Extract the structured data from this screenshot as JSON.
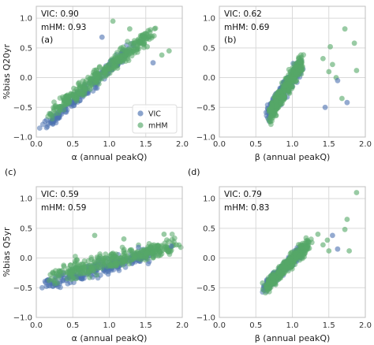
{
  "colors": {
    "vic": "#4c72b0",
    "mhm": "#55a868",
    "grid": "#d9d9d9",
    "frame": "#bfbfbf"
  },
  "chart_data": [
    {
      "type": "scatter",
      "panel_label": "(a)",
      "xlabel": "α (annual peakQ)",
      "ylabel": "%bias Q20yr",
      "xlim": [
        0.0,
        2.0
      ],
      "ylim": [
        -1.0,
        1.2
      ],
      "xticks": [
        "0.0",
        "0.5",
        "1.0",
        "1.5",
        "2.0"
      ],
      "yticks": [
        "−1.0",
        "−0.5",
        "0.0",
        "0.5",
        "1.0"
      ],
      "grid": true,
      "stats": [
        "VIC: 0.90",
        "mHM: 0.93"
      ],
      "legend": {
        "placement": "lower-right",
        "entries": [
          "VIC",
          "mHM"
        ]
      },
      "series": [
        {
          "name": "VIC",
          "cloud": {
            "x_range": [
              0.12,
              1.3
            ],
            "slope": 1.1,
            "intercept": -0.95,
            "noise": 0.11,
            "n": 230
          }
        },
        {
          "name": "mHM",
          "cloud": {
            "x_range": [
              0.2,
              1.6
            ],
            "slope": 1.0,
            "intercept": -0.82,
            "noise": 0.14,
            "n": 330
          }
        }
      ],
      "outliers": [
        [
          1.48,
          0.58
        ],
        [
          1.52,
          0.52
        ],
        [
          1.72,
          0.38
        ],
        [
          1.6,
          0.25
        ],
        [
          1.82,
          0.45
        ],
        [
          1.28,
          0.82
        ],
        [
          1.42,
          0.6
        ],
        [
          0.9,
          0.68
        ],
        [
          1.05,
          0.95
        ]
      ]
    },
    {
      "type": "scatter",
      "panel_label": "(b)",
      "xlabel": "β (annual peakQ)",
      "ylabel": "",
      "xlim": [
        0.0,
        2.0
      ],
      "ylim": [
        -1.0,
        1.2
      ],
      "xticks": [
        "0.0",
        "0.5",
        "1.0",
        "1.5",
        "2.0"
      ],
      "yticks": [
        "−1.0",
        "−0.5",
        "0.0",
        "0.5",
        "1.0"
      ],
      "grid": true,
      "stats": [
        "VIC: 0.62",
        "mHM: 0.69"
      ],
      "series": [
        {
          "name": "VIC",
          "cloud": {
            "x_range": [
              0.65,
              1.12
            ],
            "slope": 1.8,
            "intercept": -1.8,
            "noise": 0.15,
            "n": 230
          }
        },
        {
          "name": "mHM",
          "cloud": {
            "x_range": [
              0.68,
              1.15
            ],
            "slope": 2.0,
            "intercept": -2.0,
            "noise": 0.18,
            "n": 330
          }
        }
      ],
      "outliers": [
        [
          1.52,
          0.52
        ],
        [
          1.6,
          0.0
        ],
        [
          1.68,
          -0.35
        ],
        [
          1.75,
          -0.42
        ],
        [
          1.55,
          0.22
        ],
        [
          1.72,
          0.82
        ],
        [
          1.5,
          0.1
        ],
        [
          1.62,
          -0.05
        ],
        [
          1.42,
          0.32
        ],
        [
          1.88,
          0.12
        ],
        [
          1.85,
          0.58
        ],
        [
          1.45,
          -0.5
        ]
      ]
    },
    {
      "type": "scatter",
      "panel_label": "(c)",
      "xlabel": "α (annual peakQ)",
      "ylabel": "%bias Q5yr",
      "xlim": [
        0.0,
        2.0
      ],
      "ylim": [
        -1.0,
        1.2
      ],
      "xticks": [
        "0.0",
        "0.5",
        "1.0",
        "1.5",
        "2.0"
      ],
      "yticks": [
        "−1.0",
        "−0.5",
        "0.0",
        "0.5",
        "1.0"
      ],
      "grid": true,
      "stats": [
        "VIC: 0.59",
        "mHM: 0.59"
      ],
      "series": [
        {
          "name": "VIC",
          "cloud": {
            "x_range": [
              0.12,
              1.6
            ],
            "slope": 0.35,
            "intercept": -0.48,
            "noise": 0.13,
            "n": 240
          }
        },
        {
          "name": "mHM",
          "cloud": {
            "x_range": [
              0.25,
              1.9
            ],
            "slope": 0.3,
            "intercept": -0.35,
            "noise": 0.15,
            "n": 330
          }
        }
      ],
      "outliers": [
        [
          1.75,
          0.4
        ],
        [
          1.8,
          0.12
        ],
        [
          1.6,
          0.1
        ],
        [
          1.85,
          0.2
        ],
        [
          1.92,
          0.22
        ],
        [
          1.2,
          0.32
        ],
        [
          0.8,
          0.38
        ],
        [
          1.4,
          0.18
        ],
        [
          1.98,
          0.18
        ],
        [
          1.7,
          0.05
        ]
      ]
    },
    {
      "type": "scatter",
      "panel_label": "(d)",
      "xlabel": "β (annual peakQ)",
      "ylabel": "",
      "xlim": [
        0.0,
        2.0
      ],
      "ylim": [
        -1.0,
        1.2
      ],
      "xticks": [
        "0.0",
        "0.5",
        "1.0",
        "1.5",
        "2.0"
      ],
      "yticks": [
        "−1.0",
        "−0.5",
        "0.0",
        "0.5",
        "1.0"
      ],
      "grid": true,
      "stats": [
        "VIC: 0.79",
        "mHM: 0.83"
      ],
      "series": [
        {
          "name": "VIC",
          "cloud": {
            "x_range": [
              0.62,
              1.15
            ],
            "slope": 1.2,
            "intercept": -1.22,
            "noise": 0.1,
            "n": 240
          }
        },
        {
          "name": "mHM",
          "cloud": {
            "x_range": [
              0.62,
              1.25
            ],
            "slope": 1.25,
            "intercept": -1.28,
            "noise": 0.12,
            "n": 330
          }
        }
      ],
      "outliers": [
        [
          1.88,
          1.1
        ],
        [
          1.75,
          0.65
        ],
        [
          1.72,
          0.48
        ],
        [
          1.55,
          0.38
        ],
        [
          1.42,
          0.22
        ],
        [
          1.35,
          0.4
        ],
        [
          1.5,
          0.12
        ],
        [
          1.62,
          0.15
        ],
        [
          1.78,
          0.12
        ],
        [
          1.48,
          0.3
        ]
      ]
    }
  ]
}
